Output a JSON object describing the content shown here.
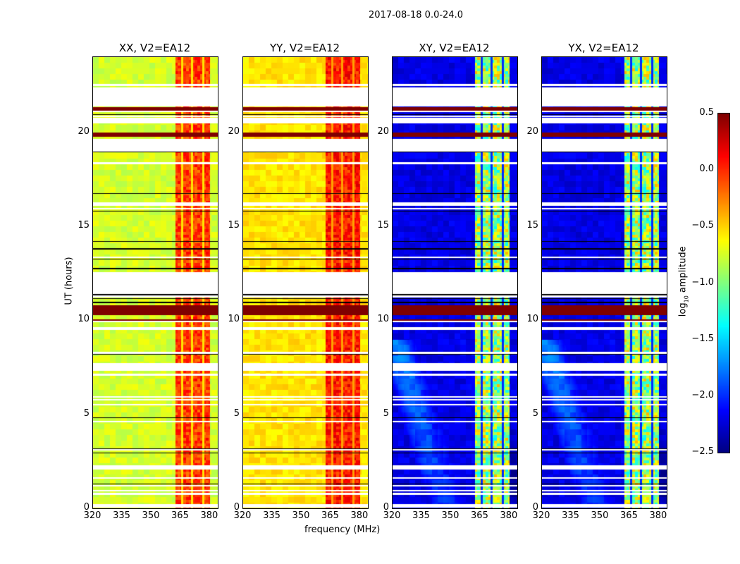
{
  "chart_data": {
    "type": "heatmap",
    "title": "2017-08-18 0.0-24.0",
    "xlabel": "frequency (MHz)",
    "ylabel": "UT (hours)",
    "xlim": [
      320,
      384
    ],
    "ylim": [
      0,
      24
    ],
    "xticks": [
      "320",
      "335",
      "350",
      "365",
      "380"
    ],
    "xtick_values": [
      320,
      335,
      350,
      365,
      380
    ],
    "yticks": [
      "0",
      "5",
      "10",
      "15",
      "20"
    ],
    "ytick_values": [
      0,
      5,
      10,
      15,
      20
    ],
    "colormap": "jet",
    "colorbar": {
      "label_main": "log",
      "label_sub": "10",
      "label_rest": " amplitude",
      "range": [
        -2.5,
        0.5
      ],
      "ticks": [
        "0.5",
        "0.0",
        "−0.5",
        "−1.0",
        "−1.5",
        "−2.0",
        "−2.5"
      ],
      "tick_values": [
        0.5,
        0.0,
        -0.5,
        -1.0,
        -1.5,
        -2.0,
        -2.5
      ]
    },
    "panels": [
      {
        "title": "XX, V2=EA12",
        "base_level": -0.75,
        "band_level": -0.05
      },
      {
        "title": "YY, V2=EA12",
        "base_level": -0.55,
        "band_level": 0.05
      },
      {
        "title": "XY, V2=EA12",
        "base_level": -2.2,
        "band_level": -0.9
      },
      {
        "title": "YX, V2=EA12",
        "base_level": -2.2,
        "band_level": -0.9
      }
    ],
    "band_mhz": [
      362,
      380
    ],
    "flagged_hours": [
      [
        21.4,
        22.4
      ],
      [
        19.0,
        19.65
      ],
      [
        11.4,
        12.6
      ],
      [
        2.1,
        2.3
      ],
      [
        16.1,
        16.3
      ],
      [
        20.5,
        20.8
      ],
      [
        0.05,
        0.2
      ]
    ],
    "rfi_hours": [
      [
        10.3,
        10.8
      ],
      [
        9.95,
        10.05
      ],
      [
        21.15,
        21.35
      ],
      [
        19.8,
        20.0
      ]
    ]
  }
}
